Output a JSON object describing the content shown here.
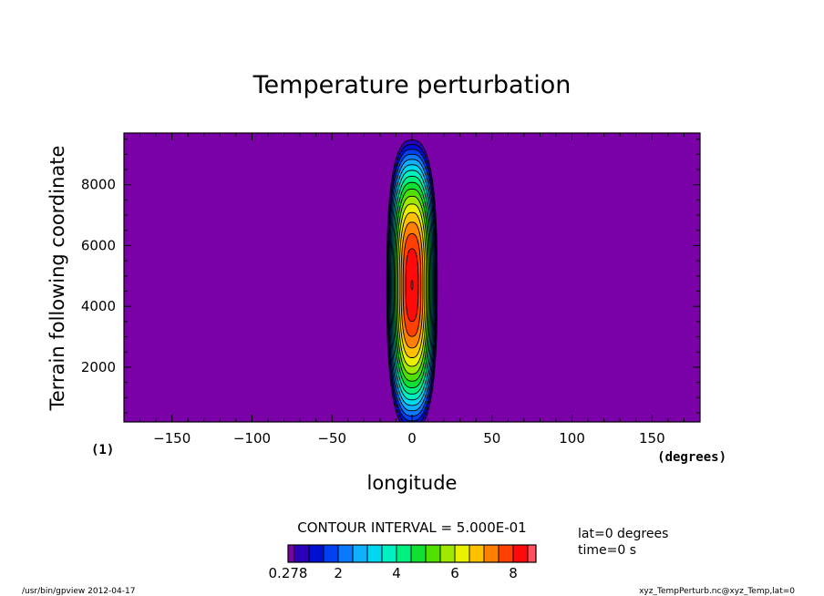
{
  "chart_data": {
    "type": "heatmap",
    "title": "Temperature perturbation",
    "xlabel": "longitude",
    "ylabel": "Terrain following coordinate",
    "x_units": "(degrees)",
    "frame_number": "(1)",
    "xlim": [
      -180,
      180
    ],
    "ylim": [
      200,
      9700
    ],
    "x_ticks": [
      -150,
      -100,
      -50,
      0,
      50,
      100,
      150
    ],
    "y_ticks": [
      2000,
      4000,
      6000,
      8000
    ],
    "field": {
      "peak_value": 8.5,
      "peak_longitude": 0,
      "peak_height": 4700,
      "half_width_deg": 16,
      "half_height": 4700,
      "background_value": 0.278
    },
    "contour_interval_text": "CONTOUR INTERVAL = 5.000E-01",
    "colorbar": {
      "min_label": "0.278",
      "tick_labels": [
        "2",
        "4",
        "6",
        "8"
      ],
      "tick_values": [
        2,
        4,
        6,
        8
      ],
      "range": [
        0.278,
        8.78
      ],
      "levels": [
        0.278,
        0.5,
        1.0,
        1.5,
        2.0,
        2.5,
        3.0,
        3.5,
        4.0,
        4.5,
        5.0,
        5.5,
        6.0,
        6.5,
        7.0,
        7.5,
        8.0,
        8.5,
        8.78
      ],
      "colors": [
        "#7a00a8",
        "#2a00b8",
        "#0010d0",
        "#0040f0",
        "#0a78ff",
        "#10b0ff",
        "#00d8f0",
        "#00f0c0",
        "#00f080",
        "#10e030",
        "#50e000",
        "#a0e800",
        "#e8f000",
        "#ffc000",
        "#ff8000",
        "#ff4000",
        "#ff0a0a",
        "#ff5060",
        "#ffb0b8"
      ]
    },
    "annotations": [
      "lat=0  degrees",
      "time=0  s"
    ]
  },
  "footer": {
    "left": "/usr/bin/gpview   2012-04-17",
    "right": "xyz_TempPerturb.nc@xyz_Temp,lat=0"
  }
}
